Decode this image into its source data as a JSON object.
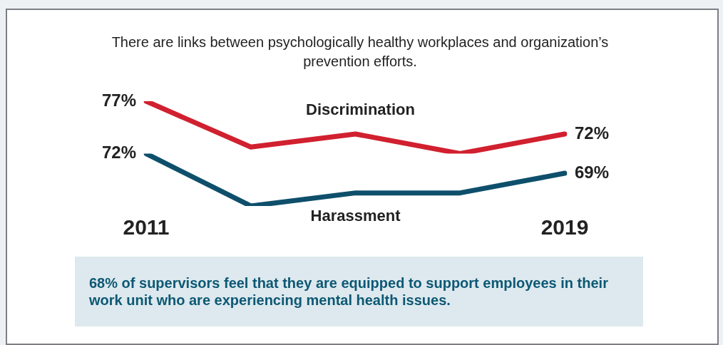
{
  "chart_data": {
    "type": "line",
    "title": "There are links between psychologically healthy workplaces and organization’s prevention efforts.",
    "categories": [
      "2011",
      null,
      null,
      null,
      "2019"
    ],
    "series": [
      {
        "name": "Discrimination",
        "color": "#d1202f",
        "values": [
          77,
          70,
          72,
          69,
          72
        ],
        "value_labels": [
          "77%",
          null,
          null,
          null,
          "72%"
        ]
      },
      {
        "name": "Harassment",
        "color": "#0e4f6b",
        "axis": "y2",
        "values": [
          72,
          64,
          66,
          66,
          69
        ],
        "value_labels": [
          "72%",
          null,
          null,
          null,
          "69%"
        ]
      }
    ],
    "tick_labels": "x",
    "grid": false,
    "legend": false,
    "marker": "none",
    "line_style": "solid",
    "annotations": [
      "68% of supervisors feel that they are equipped to support employees in their work unit who are experiencing mental health issues."
    ]
  }
}
